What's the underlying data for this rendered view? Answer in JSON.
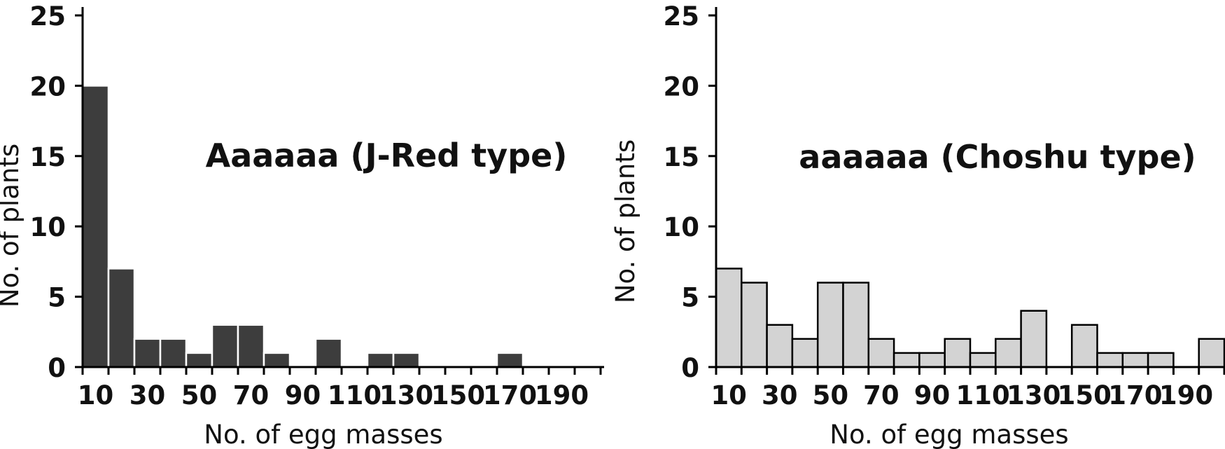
{
  "figure": {
    "background": "#ffffff",
    "axis_color": "#000000",
    "text_color": "#111111"
  },
  "chart_data": [
    {
      "type": "bar",
      "subtype": "histogram",
      "title": "Aaaaaa (J-Red type)",
      "xlabel": "No. of egg masses",
      "ylabel": "No. of plants",
      "categories": [
        10,
        20,
        30,
        40,
        50,
        60,
        70,
        80,
        90,
        100,
        110,
        120,
        130,
        140,
        150,
        160,
        170,
        180,
        190,
        200
      ],
      "values": [
        20,
        7,
        2,
        2,
        1,
        3,
        3,
        1,
        0,
        2,
        0,
        1,
        1,
        0,
        0,
        0,
        1,
        0,
        0,
        0
      ],
      "x_tick_labels": [
        "10",
        "30",
        "50",
        "70",
        "90",
        "110",
        "130",
        "150",
        "170",
        "190"
      ],
      "y_ticks": [
        0,
        5,
        10,
        15,
        20,
        25
      ],
      "ylim": [
        0,
        25
      ],
      "bar_fill": "#3d3d3d",
      "bar_stroke": "#ffffff",
      "grid": false,
      "legend": "none"
    },
    {
      "type": "bar",
      "subtype": "histogram",
      "title": "aaaaaa (Choshu type)",
      "xlabel": "No. of egg masses",
      "ylabel": "No. of plants",
      "categories": [
        10,
        20,
        30,
        40,
        50,
        60,
        70,
        80,
        90,
        100,
        110,
        120,
        130,
        140,
        150,
        160,
        170,
        180,
        190,
        200
      ],
      "values": [
        7,
        6,
        3,
        2,
        6,
        6,
        2,
        1,
        1,
        2,
        1,
        2,
        4,
        0,
        3,
        1,
        1,
        1,
        0,
        2
      ],
      "x_tick_labels": [
        "10",
        "30",
        "50",
        "70",
        "90",
        "110",
        "130",
        "150",
        "170",
        "190"
      ],
      "y_ticks": [
        0,
        5,
        10,
        15,
        20,
        25
      ],
      "ylim": [
        0,
        25
      ],
      "bar_fill": "#d3d3d3",
      "bar_stroke": "#000000",
      "grid": false,
      "legend": "none"
    }
  ]
}
